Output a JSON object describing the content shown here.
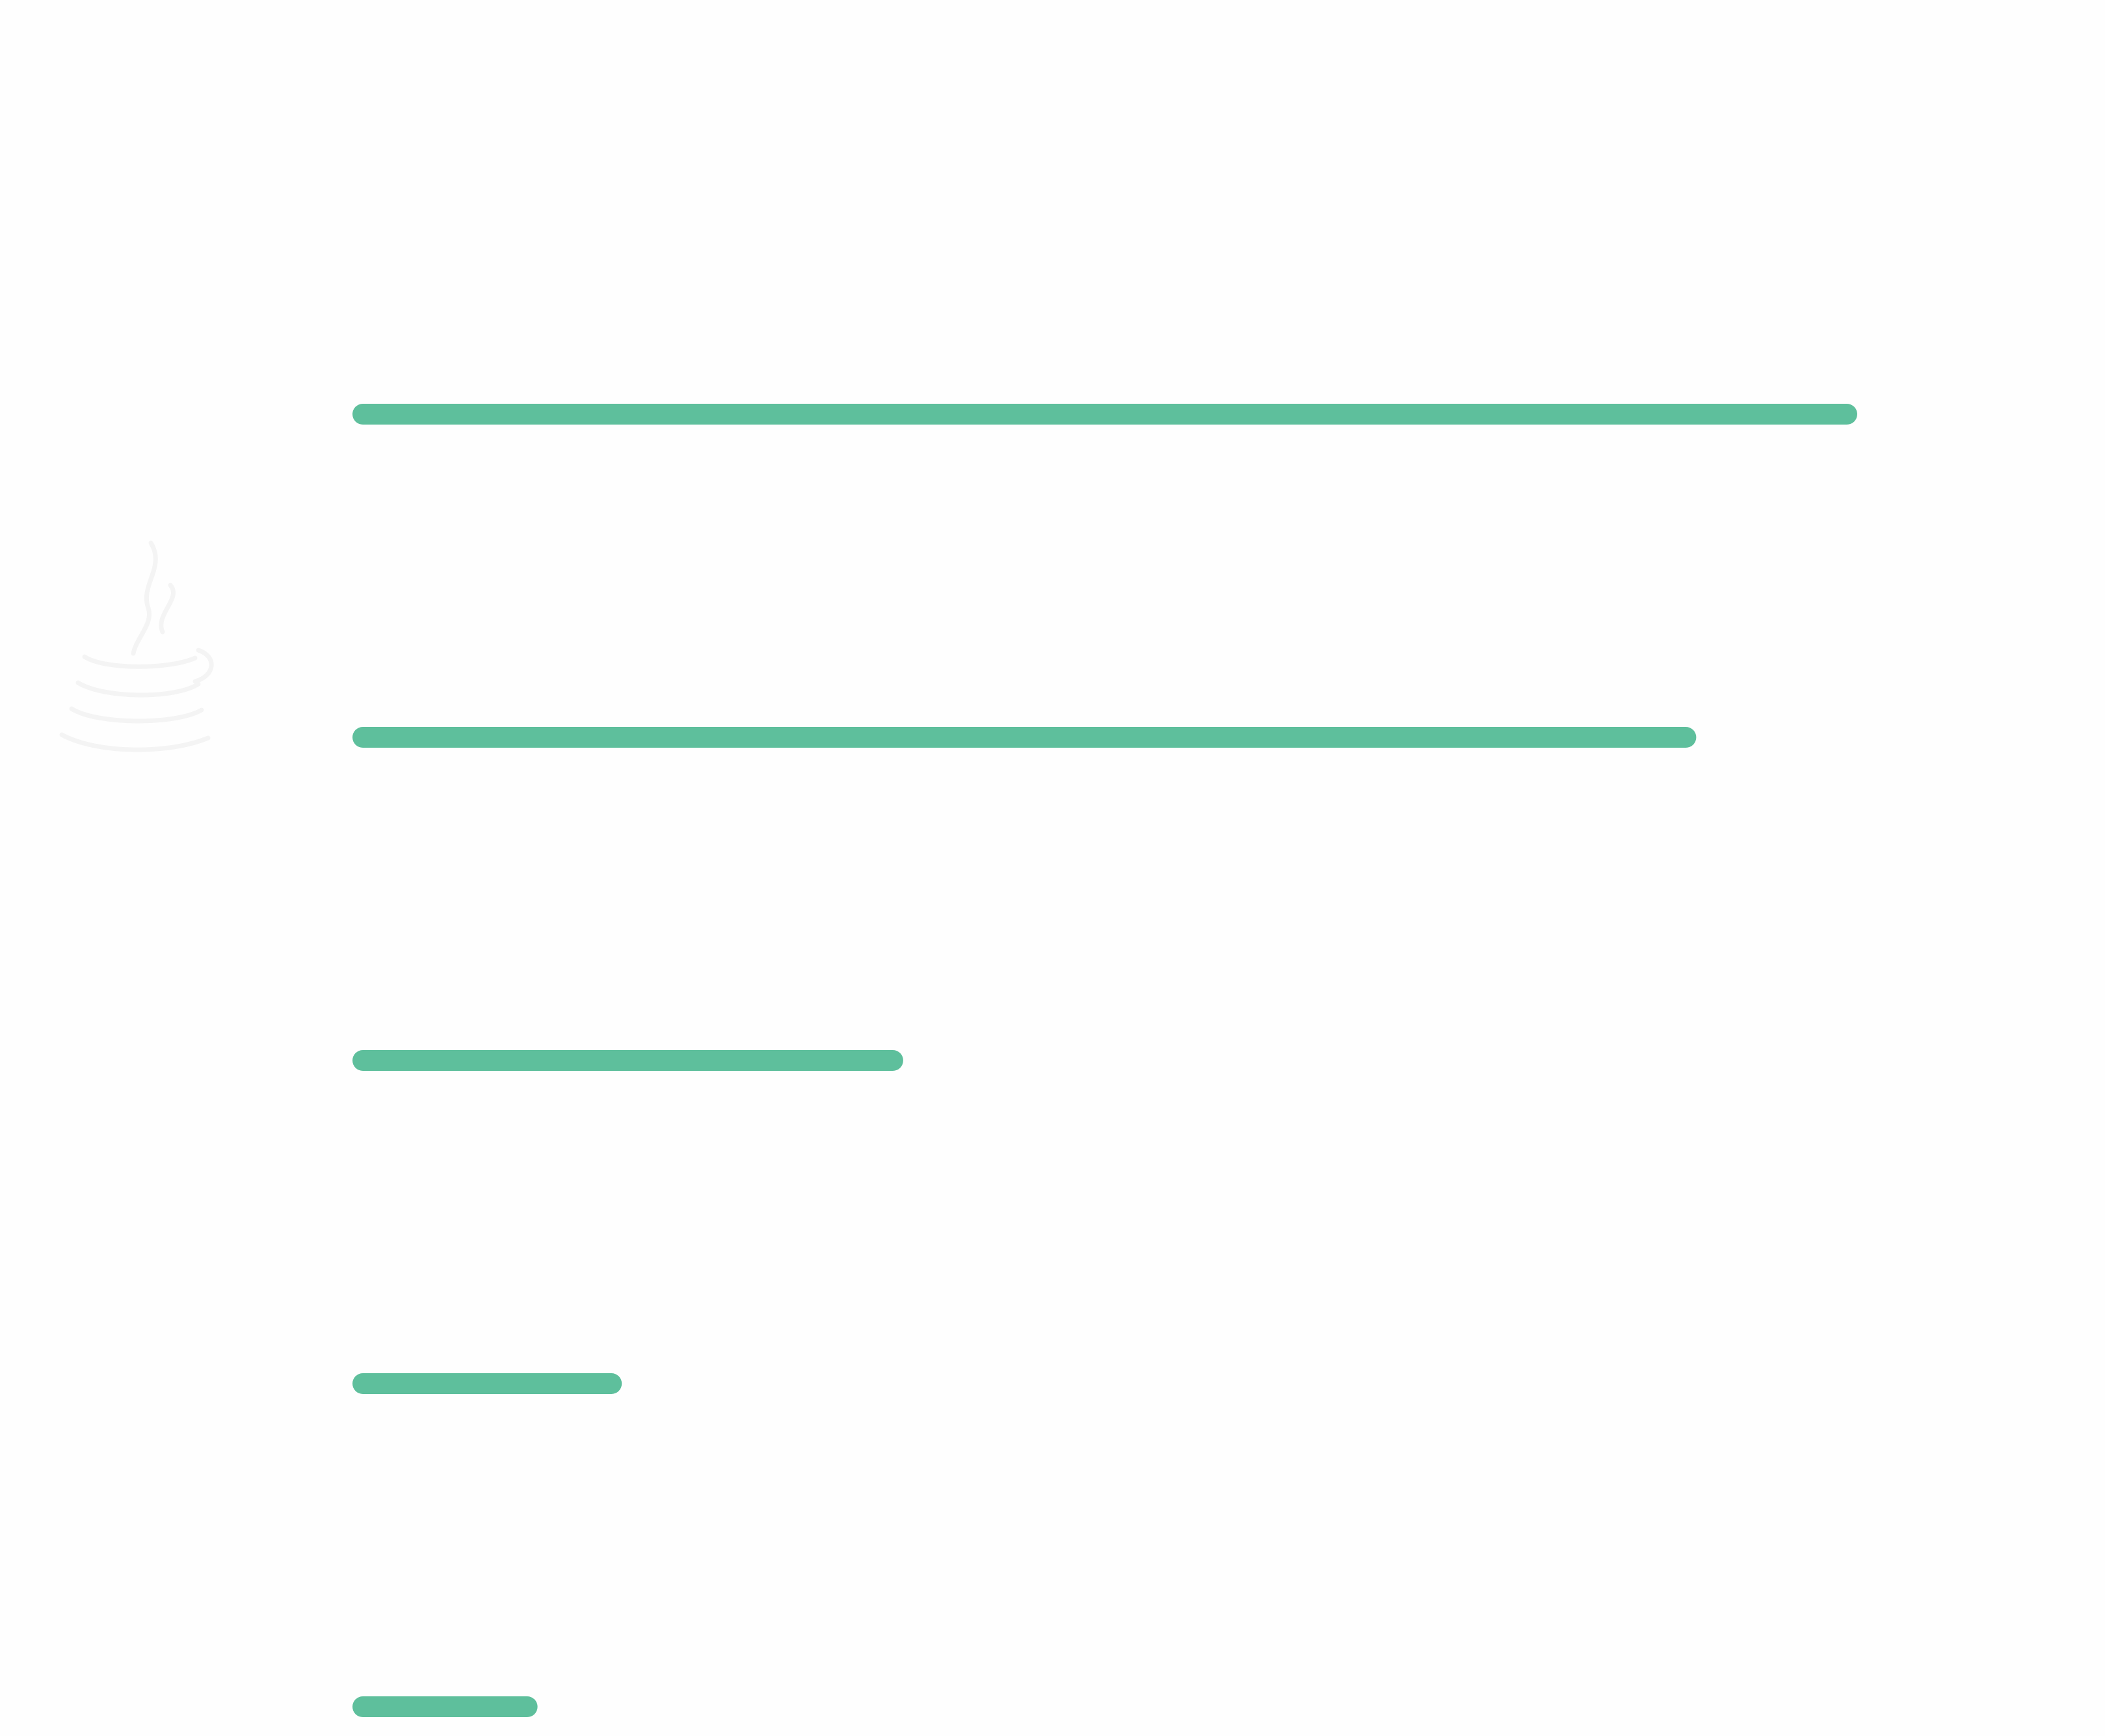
{
  "chart_data": {
    "type": "bar",
    "orientation": "horizontal",
    "categories": [
      "",
      "",
      "",
      "",
      ""
    ],
    "values": [
      100,
      89.3,
      36.6,
      17.9,
      12.3
    ],
    "xlim": [
      0,
      100
    ],
    "grid": false,
    "legend": "none",
    "bar_color": "#5ebf9c",
    "logo_icon": "java-logo-icon",
    "logo_color": "#f4f4f4"
  }
}
